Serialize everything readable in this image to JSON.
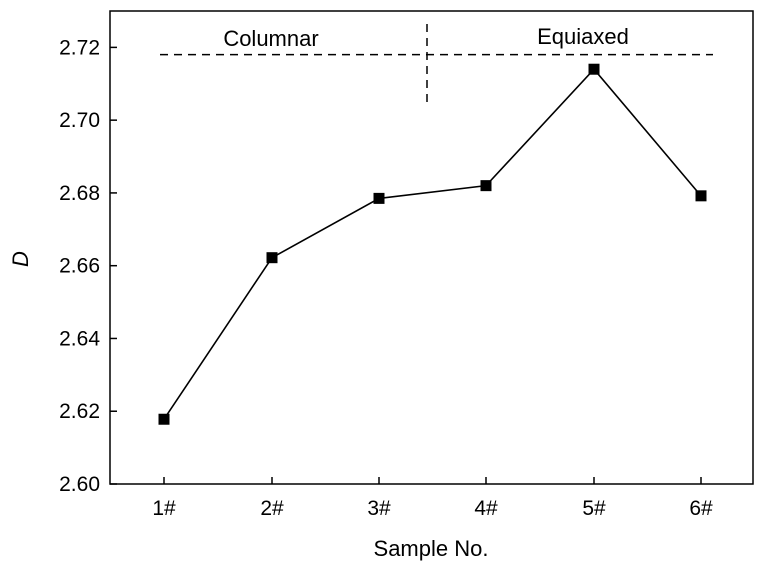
{
  "chart_data": {
    "type": "line",
    "categories": [
      "1#",
      "2#",
      "3#",
      "4#",
      "5#",
      "6#"
    ],
    "series": [
      {
        "values": [
          2.6178,
          2.6622,
          2.6785,
          2.682,
          2.714,
          2.6792
        ]
      }
    ],
    "xlabel": "Sample No.",
    "ylabel": "D",
    "ylim": [
      2.6,
      2.73
    ],
    "yticks": [
      "2.60",
      "2.62",
      "2.64",
      "2.66",
      "2.68",
      "2.70",
      "2.72"
    ],
    "grid": false,
    "annotations": {
      "left_region": "Columnar",
      "right_region": "Equiaxed",
      "reference_line_value": 2.718
    },
    "colors": {
      "line": "#000000",
      "marker": "#000000"
    }
  }
}
